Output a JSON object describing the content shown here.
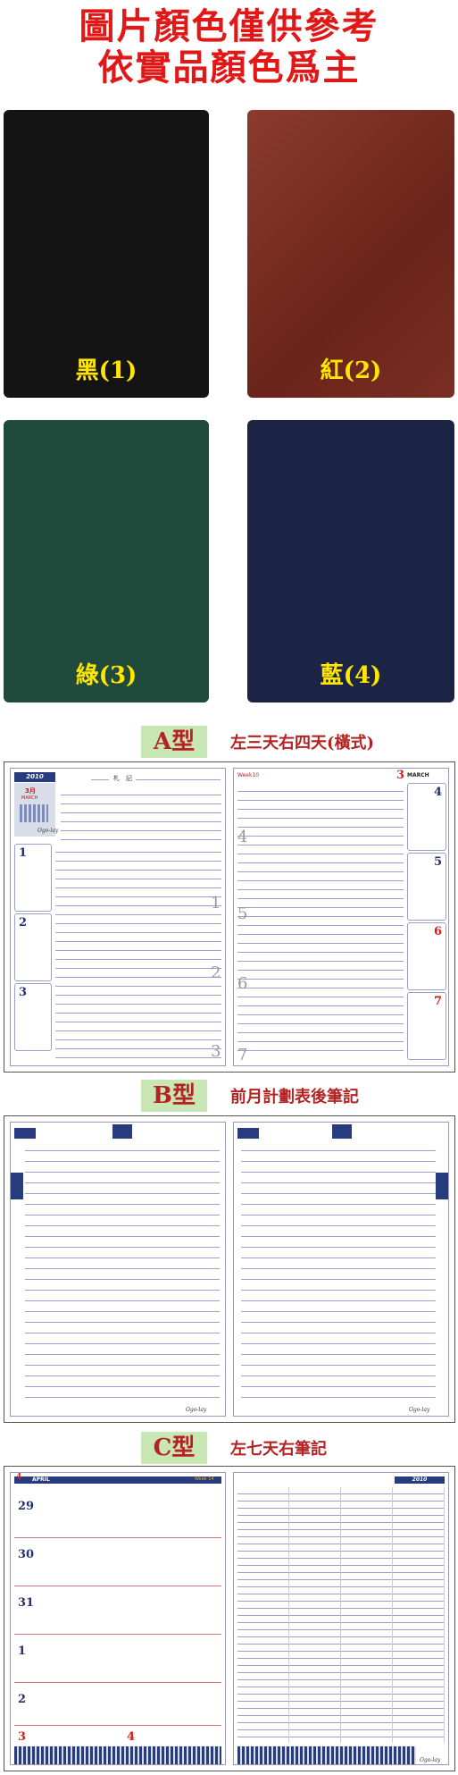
{
  "header": {
    "line1": "圖片顏色僅供參考",
    "line2": "依實品顏色爲主"
  },
  "covers": [
    {
      "label": "黑(1)",
      "color": "#141414"
    },
    {
      "label": "紅(2)",
      "color": "#7b2b22"
    },
    {
      "label": "綠(3)",
      "color": "#1f4a3c"
    },
    {
      "label": "藍(4)",
      "color": "#1c2446"
    }
  ],
  "sections": {
    "a": {
      "badge": "A型",
      "desc": "左三天右四天(橫式)"
    },
    "b": {
      "badge": "B型",
      "desc": "前月計劃表後筆記"
    },
    "c": {
      "badge": "C型",
      "desc": "左七天右筆記"
    }
  },
  "spread_a": {
    "year": "2010",
    "notes_title": "札　記",
    "month_cn": "3月",
    "month_en": "MARCH",
    "week_tag": "Week10",
    "right_month_num": "3",
    "right_month_en": "MARCH",
    "left_days": [
      "1",
      "2",
      "3"
    ],
    "right_days": [
      "4",
      "5",
      "6",
      "7"
    ],
    "left_big": [
      "1",
      "2",
      "3"
    ],
    "right_big": [
      "4",
      "5",
      "6",
      "7"
    ]
  },
  "spread_c": {
    "month_num": "4",
    "month_en": "APRIL",
    "week_tag": "Week 14",
    "year": "2010",
    "days": [
      "29",
      "30",
      "31",
      "1",
      "2"
    ],
    "bottom_days": [
      "3",
      "4"
    ]
  },
  "colors": {
    "accent": "#e01818",
    "navy": "#263c7c",
    "badge_bg": "#c9e7b4"
  }
}
